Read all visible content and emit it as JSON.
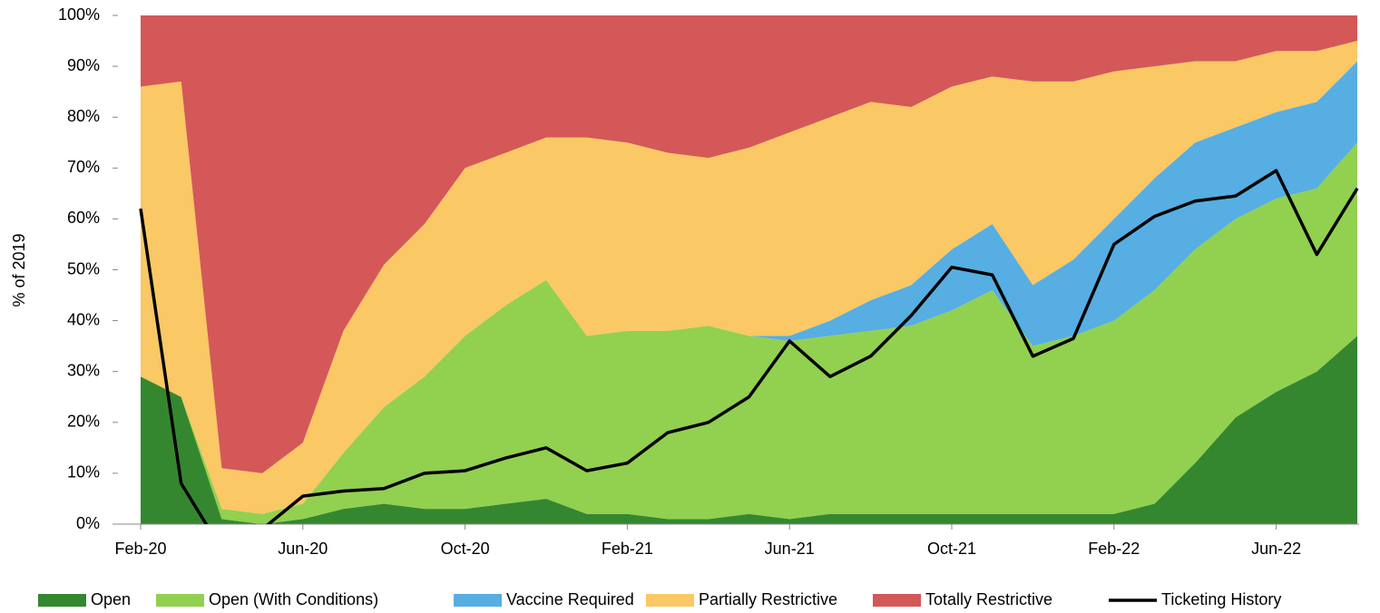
{
  "chart_data": {
    "type": "stacked_area_line",
    "ylabel": "% of 2019",
    "categories": [
      "Feb-20",
      null,
      null,
      null,
      "Jun-20",
      null,
      null,
      null,
      "Oct-20",
      null,
      null,
      null,
      "Feb-21",
      null,
      null,
      null,
      "Jun-21",
      null,
      null,
      null,
      "Oct-21",
      null,
      null,
      null,
      "Feb-22",
      null,
      null,
      null,
      "Jun-22",
      null,
      null
    ],
    "series": [
      {
        "name": "Open",
        "color": "#35872f",
        "values": [
          29,
          25,
          1,
          0,
          1,
          3,
          4,
          3,
          3,
          4,
          5,
          2,
          2,
          1,
          1,
          2,
          1,
          2,
          2,
          2,
          2,
          2,
          2,
          2,
          2,
          4,
          12,
          21,
          26,
          30,
          37
        ]
      },
      {
        "name": "Open (With Conditions)",
        "color": "#92d050",
        "values": [
          0,
          0,
          2,
          2,
          3,
          11,
          19,
          26,
          34,
          39,
          43,
          35,
          36,
          37,
          38,
          35,
          35,
          35,
          36,
          37,
          40,
          44,
          33,
          35,
          38,
          42,
          42,
          39,
          38,
          36,
          38
        ]
      },
      {
        "name": "Vaccine Required",
        "color": "#56aee2",
        "values": [
          0,
          0,
          0,
          0,
          0,
          0,
          0,
          0,
          0,
          0,
          0,
          0,
          0,
          0,
          0,
          0,
          1,
          3,
          6,
          8,
          12,
          13,
          12,
          15,
          20,
          22,
          21,
          18,
          17,
          17,
          16
        ]
      },
      {
        "name": "Partially Restrictive",
        "color": "#fac864",
        "values": [
          57,
          62,
          8,
          8,
          12,
          24,
          28,
          30,
          33,
          30,
          28,
          39,
          37,
          35,
          33,
          37,
          40,
          40,
          39,
          35,
          32,
          29,
          40,
          35,
          29,
          22,
          16,
          13,
          12,
          10,
          4
        ]
      },
      {
        "name": "Totally Restrictive",
        "color": "#d45858",
        "values": [
          14,
          13,
          89,
          90,
          84,
          62,
          49,
          41,
          30,
          27,
          24,
          24,
          25,
          27,
          28,
          26,
          23,
          20,
          17,
          18,
          14,
          12,
          13,
          13,
          11,
          10,
          9,
          9,
          7,
          7,
          5
        ]
      },
      {
        "name": "Ticketing History",
        "color": "#000000",
        "type": "line",
        "values": [
          62,
          8,
          -5,
          -1,
          5.5,
          6.5,
          7,
          10,
          10.5,
          13,
          15,
          10.5,
          12,
          18,
          20,
          25,
          36,
          29,
          33,
          41,
          50.5,
          49,
          33,
          36.5,
          55,
          60.5,
          63.5,
          64.5,
          69.5,
          53,
          66
        ]
      }
    ],
    "ylim": [
      0,
      100
    ],
    "yticks": [
      {
        "value": 0,
        "label": "0%"
      },
      {
        "value": 10,
        "label": "10%"
      },
      {
        "value": 20,
        "label": "20%"
      },
      {
        "value": 30,
        "label": "30%"
      },
      {
        "value": 40,
        "label": "40%"
      },
      {
        "value": 50,
        "label": "50%"
      },
      {
        "value": 60,
        "label": "60%"
      },
      {
        "value": 70,
        "label": "70%"
      },
      {
        "value": 80,
        "label": "80%"
      },
      {
        "value": 90,
        "label": "90%"
      },
      {
        "value": 100,
        "label": "100%"
      }
    ],
    "legend": "bottom"
  }
}
